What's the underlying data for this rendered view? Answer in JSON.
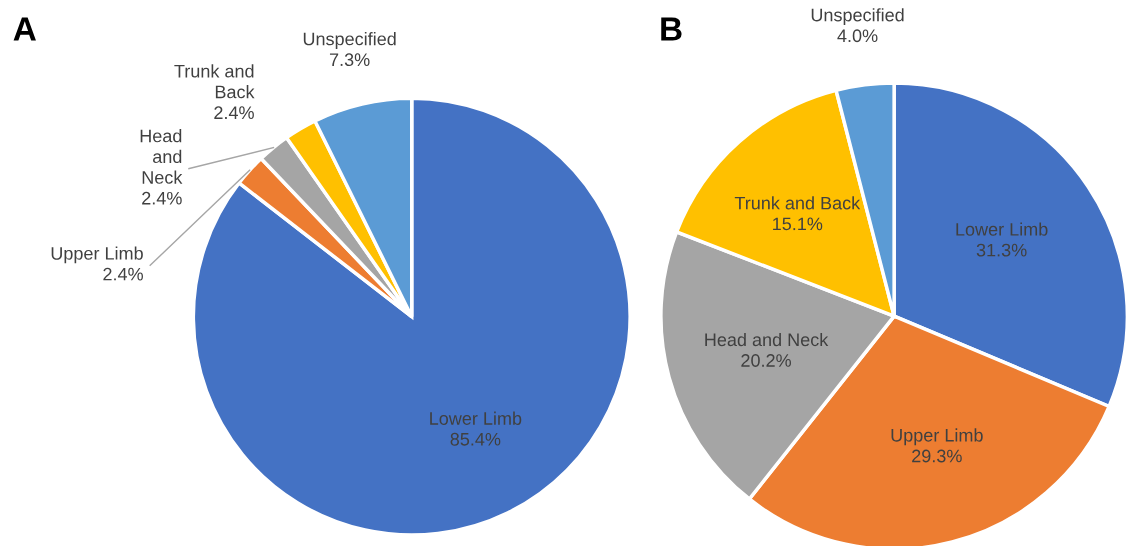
{
  "chart_data": [
    {
      "type": "pie",
      "title": "A",
      "categories": [
        "Lower Limb",
        "Upper Limb",
        "Head\nand\nNeck",
        "Trunk and\nBack",
        "Unspecified"
      ],
      "values": [
        85.4,
        2.4,
        2.4,
        2.4,
        7.3
      ],
      "colors": [
        "#4472c4",
        "#ed7d31",
        "#a5a5a5",
        "#ffc000",
        "#5b9bd5"
      ],
      "value_labels": [
        "85.4%",
        "2.4%",
        "2.4%",
        "2.4%",
        "7.3%"
      ]
    },
    {
      "type": "pie",
      "title": "B",
      "categories": [
        "Lower Limb",
        "Upper Limb",
        "Head and Neck",
        "Trunk and Back",
        "Unspecified"
      ],
      "values": [
        31.3,
        29.3,
        20.2,
        15.1,
        4.0
      ],
      "colors": [
        "#4472c4",
        "#ed7d31",
        "#a5a5a5",
        "#ffc000",
        "#5b9bd5"
      ],
      "value_labels": [
        "31.3%",
        "29.3%",
        "20.2%",
        "15.1%",
        "4.0%"
      ]
    }
  ]
}
